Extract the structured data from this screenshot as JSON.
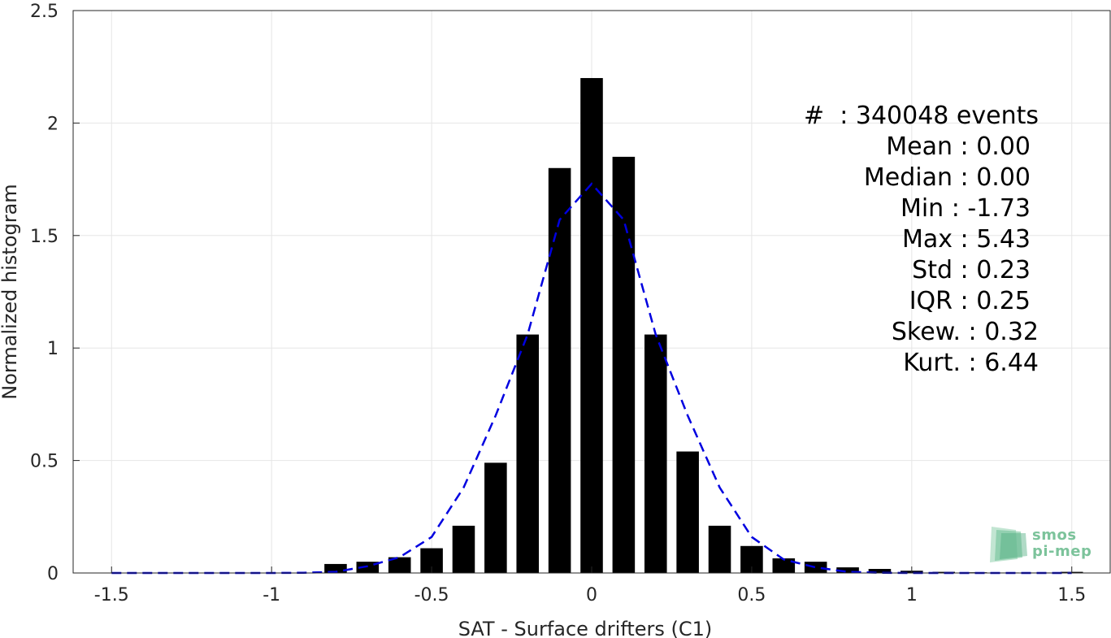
{
  "chart_data": {
    "type": "bar",
    "xlabel": "SAT - Surface drifters (C1)",
    "ylabel": "Normalized histogram",
    "xlim": [
      -1.62,
      1.62
    ],
    "ylim": [
      0,
      2.5
    ],
    "xticks": [
      -1.5,
      -1,
      -0.5,
      0,
      0.5,
      1,
      1.5
    ],
    "xtick_labels": [
      "-1.5",
      "-1",
      "-0.5",
      "0",
      "0.5",
      "1",
      "1.5"
    ],
    "yticks": [
      0,
      0.5,
      1,
      1.5,
      2,
      2.5
    ],
    "ytick_labels": [
      "0",
      "0.5",
      "1",
      "1.5",
      "2",
      "2.5"
    ],
    "grid": true,
    "bar_centers": [
      -0.8,
      -0.7,
      -0.6,
      -0.5,
      -0.4,
      -0.3,
      -0.2,
      -0.1,
      0,
      0.1,
      0.2,
      0.3,
      0.4,
      0.5,
      0.6,
      0.7,
      0.8,
      0.9,
      1.0,
      1.1,
      1.2,
      1.3,
      1.4,
      1.5
    ],
    "bar_values": [
      0.04,
      0.05,
      0.07,
      0.11,
      0.21,
      0.49,
      1.06,
      1.8,
      2.2,
      1.85,
      1.06,
      0.54,
      0.21,
      0.12,
      0.065,
      0.05,
      0.025,
      0.018,
      0.01,
      0.005,
      0.003,
      0.002,
      0.002,
      0.005
    ],
    "bar_color": "#000000",
    "fit_line": {
      "style": "dashed",
      "color": "#0000e0",
      "x": [
        -1.5,
        -1.4,
        -1.3,
        -1.2,
        -1.1,
        -1.0,
        -0.9,
        -0.8,
        -0.7,
        -0.6,
        -0.5,
        -0.4,
        -0.3,
        -0.2,
        -0.1,
        0,
        0.1,
        0.2,
        0.3,
        0.4,
        0.5,
        0.6,
        0.7,
        0.8,
        0.9,
        1.0,
        1.1,
        1.2,
        1.3,
        1.4,
        1.5
      ],
      "y": [
        0,
        0,
        0,
        0,
        0,
        0,
        0.001,
        0.005,
        0.03,
        0.07,
        0.16,
        0.38,
        0.7,
        1.06,
        1.57,
        1.73,
        1.57,
        1.06,
        0.7,
        0.38,
        0.16,
        0.06,
        0.025,
        0.005,
        0.001,
        0,
        0,
        0,
        0,
        0,
        0
      ]
    },
    "annotations": [
      "#  : 340048 events",
      "Mean : 0.00",
      "Median : 0.00",
      "Min : -1.73",
      "Max : 5.43",
      "Std : 0.23",
      "IQR : 0.25",
      "Skew. : 0.32",
      "Kurt. : 6.44"
    ]
  },
  "logo": {
    "line1": "smos",
    "line2": "pi-mep",
    "color": "#7cc39b"
  }
}
